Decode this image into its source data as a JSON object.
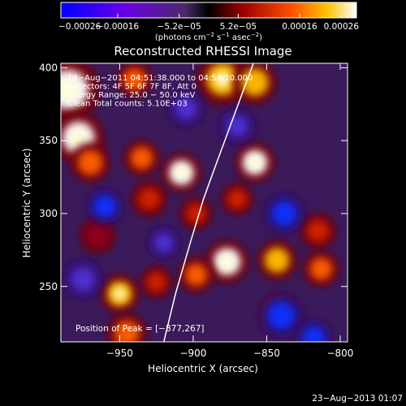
{
  "chart_data": {
    "type": "heatmap",
    "title": "Reconstructed RHESSI Image",
    "xlabel": "Heliocentric X (arcsec)",
    "ylabel": "Heliocentric Y (arcsec)",
    "xlim": [
      -990,
      -795
    ],
    "ylim": [
      212,
      403
    ],
    "xticks": [
      -950,
      -900,
      -850,
      -800
    ],
    "xtick_labels": [
      "−950",
      "−900",
      "−850",
      "−800"
    ],
    "yticks": [
      250,
      300,
      350,
      400
    ],
    "ytick_labels": [
      "250",
      "300",
      "350",
      "400"
    ],
    "colorbar": {
      "range": [
        -0.00026,
        0.00026
      ],
      "ticks": [
        -0.00026,
        -0.00016,
        -5.2e-05,
        5.2e-05,
        0.00016,
        0.00026
      ],
      "tick_labels": [
        "−0.00026",
        "−0.00016",
        "−5.2e−05",
        "5.2e−05",
        "0.00016",
        "0.00026"
      ],
      "unit_parts": [
        "(photons cm",
        "−2",
        " s",
        "−1",
        " asec",
        "−2",
        ")"
      ]
    },
    "annotations": [
      "14−Aug−2011 04:51:38.000 to 04:54:10.000",
      "Detectors: 4F 5F 6F 7F 8F, Att 0",
      "Energy Range: 25.0 − 50.0 keV",
      "Clean    Total counts: 5.10E+03"
    ],
    "peak_text": "Position of Peak = [−877,267]",
    "peak": [
      -877,
      267
    ],
    "limb": [
      [
        -920,
        212
      ],
      [
        -912,
        245
      ],
      [
        -902,
        280
      ],
      [
        -893,
        310
      ],
      [
        -884,
        335
      ],
      [
        -873,
        365
      ],
      [
        -862,
        395
      ],
      [
        -859,
        403
      ]
    ],
    "sources": [
      {
        "x": -985,
        "y": 385,
        "v": 0.00026,
        "r": 16
      },
      {
        "x": -978,
        "y": 352,
        "v": 0.00024,
        "r": 13
      },
      {
        "x": -970,
        "y": 335,
        "v": 0.00016,
        "r": 10
      },
      {
        "x": -940,
        "y": 392,
        "v": 0.00012,
        "r": 9
      },
      {
        "x": -880,
        "y": 392,
        "v": 0.00022,
        "r": 13
      },
      {
        "x": -858,
        "y": 390,
        "v": 0.00018,
        "r": 11
      },
      {
        "x": -908,
        "y": 328,
        "v": 0.00024,
        "r": 10
      },
      {
        "x": -935,
        "y": 338,
        "v": 0.00014,
        "r": 9
      },
      {
        "x": -858,
        "y": 335,
        "v": 0.00024,
        "r": 10
      },
      {
        "x": -898,
        "y": 300,
        "v": 0.0001,
        "r": 8
      },
      {
        "x": -877,
        "y": 267,
        "v": 0.00026,
        "r": 11
      },
      {
        "x": -898,
        "y": 258,
        "v": 0.00016,
        "r": 9
      },
      {
        "x": -843,
        "y": 268,
        "v": 0.00018,
        "r": 10
      },
      {
        "x": -813,
        "y": 262,
        "v": 0.00012,
        "r": 9
      },
      {
        "x": -950,
        "y": 245,
        "v": 0.00022,
        "r": 10
      },
      {
        "x": -925,
        "y": 253,
        "v": 0.0001,
        "r": 8
      },
      {
        "x": -945,
        "y": 218,
        "v": 0.00014,
        "r": 10
      },
      {
        "x": -842,
        "y": 232,
        "v": 0.00014,
        "r": 9
      },
      {
        "x": -815,
        "y": 288,
        "v": 0.0001,
        "r": 9
      },
      {
        "x": -930,
        "y": 310,
        "v": 8e-05,
        "r": 9
      },
      {
        "x": -965,
        "y": 285,
        "v": 6e-05,
        "r": 9
      },
      {
        "x": -870,
        "y": 310,
        "v": 8e-05,
        "r": 8
      },
      {
        "x": -960,
        "y": 305,
        "v": -0.00016,
        "r": 9
      },
      {
        "x": -975,
        "y": 255,
        "v": -0.00014,
        "r": 10
      },
      {
        "x": -838,
        "y": 300,
        "v": -0.00018,
        "r": 10
      },
      {
        "x": -905,
        "y": 372,
        "v": -0.00012,
        "r": 9
      },
      {
        "x": -840,
        "y": 230,
        "v": -0.0002,
        "r": 11
      },
      {
        "x": -818,
        "y": 215,
        "v": -0.00016,
        "r": 9
      },
      {
        "x": -870,
        "y": 360,
        "v": -0.0001,
        "r": 9
      },
      {
        "x": -920,
        "y": 280,
        "v": -0.00012,
        "r": 8
      }
    ]
  },
  "timestamp": "23−Aug−2013 01:07"
}
